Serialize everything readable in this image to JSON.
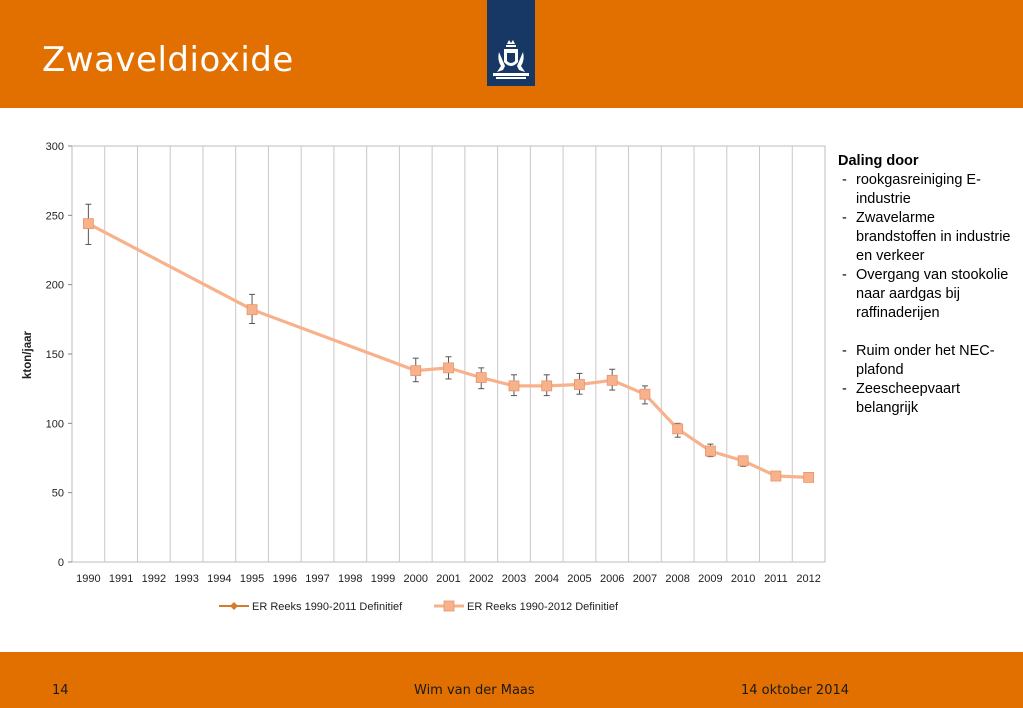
{
  "slide": {
    "title": "Zwaveldioxide",
    "page_number": "14",
    "author": "Wim van der Maas",
    "date": "14 oktober 2014",
    "header_color": "#e17000",
    "logo_color": "#173864"
  },
  "notes": {
    "heading": "Daling door",
    "items_a": [
      "rookgasreiniging E-industrie",
      "Zwavelarme brandstoffen in industrie en verkeer",
      "Overgang van stookolie naar aardgas bij raffinaderijen"
    ],
    "items_b": [
      "Ruim onder het NEC-plafond",
      "Zeescheepvaart belangrijk"
    ]
  },
  "chart_data": {
    "type": "line",
    "ylabel": "kton/jaar",
    "xlabel": "",
    "ylim": [
      0,
      300
    ],
    "yticks": [
      0,
      50,
      100,
      150,
      200,
      250,
      300
    ],
    "grid": "vertical",
    "legend_position": "bottom",
    "categories": [
      "1990",
      "1991",
      "1992",
      "1993",
      "1994",
      "1995",
      "1996",
      "1997",
      "1998",
      "1999",
      "2000",
      "2001",
      "2002",
      "2003",
      "2004",
      "2005",
      "2006",
      "2007",
      "2008",
      "2009",
      "2010",
      "2011",
      "2012"
    ],
    "series": [
      {
        "name": "ER Reeks 1990-2011 Definitief",
        "color": "#d67a2f",
        "marker": "diamond",
        "values": [
          244,
          null,
          null,
          null,
          null,
          182,
          null,
          null,
          null,
          null,
          138,
          140,
          133,
          127,
          127,
          128,
          131,
          121,
          96,
          80,
          73,
          62,
          61
        ]
      },
      {
        "name": "ER Reeks 1990-2012 Definitief",
        "color": "#f7b28c",
        "marker": "square",
        "values": [
          244,
          null,
          null,
          null,
          null,
          182,
          null,
          null,
          null,
          null,
          138,
          140,
          133,
          127,
          127,
          128,
          131,
          121,
          96,
          80,
          73,
          62,
          61
        ],
        "error_low": [
          229,
          null,
          null,
          null,
          null,
          172,
          null,
          null,
          null,
          null,
          130,
          132,
          125,
          120,
          120,
          121,
          124,
          114,
          90,
          76,
          69,
          null,
          null
        ],
        "error_high": [
          258,
          null,
          null,
          null,
          null,
          193,
          null,
          null,
          null,
          null,
          147,
          148,
          140,
          135,
          135,
          136,
          139,
          127,
          100,
          85,
          76,
          null,
          null
        ]
      }
    ]
  }
}
